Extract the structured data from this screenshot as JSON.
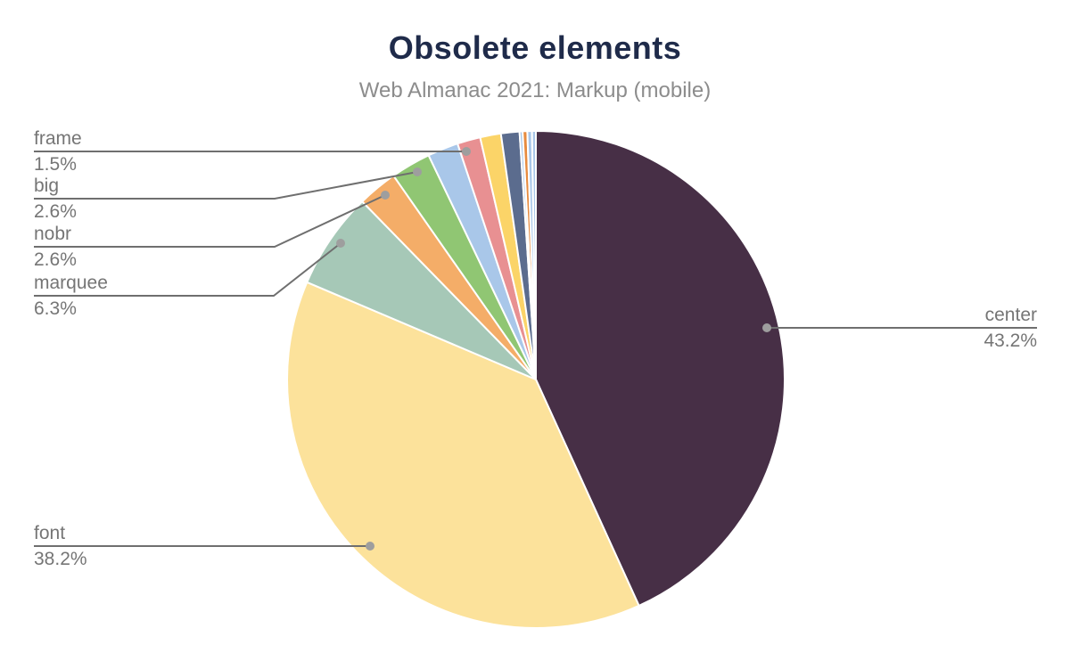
{
  "chart_data": {
    "type": "pie",
    "title": "Obsolete elements",
    "subtitle": "Web Almanac 2021: Markup (mobile)",
    "unit": "%",
    "legend_position": "none",
    "grid": false,
    "slices": [
      {
        "label": "center",
        "value": 43.2,
        "color": "#472F46"
      },
      {
        "label": "font",
        "value": 38.2,
        "color": "#FCE29B"
      },
      {
        "label": "marquee",
        "value": 6.3,
        "color": "#A6C8B7"
      },
      {
        "label": "nobr",
        "value": 2.6,
        "color": "#F4AD68"
      },
      {
        "label": "big",
        "value": 2.6,
        "color": "#90C673"
      },
      {
        "label": "",
        "value": 2.0,
        "color": "#A9C7E9"
      },
      {
        "label": "frame",
        "value": 1.5,
        "color": "#E89092"
      },
      {
        "label": "",
        "value": 1.35,
        "color": "#FBD468"
      },
      {
        "label": "",
        "value": 1.2,
        "color": "#5B6C8E"
      },
      {
        "label": "",
        "value": 0.2,
        "color": "#A9C7E9"
      },
      {
        "label": "",
        "value": 0.3,
        "color": "#E78B3F"
      },
      {
        "label": "",
        "value": 0.3,
        "color": "#A9C7E9"
      },
      {
        "label": "",
        "value": 0.25,
        "color": "#A9C7E9"
      }
    ],
    "callouts": [
      {
        "slice": "frame",
        "label": "frame",
        "value_text": "1.5%"
      },
      {
        "slice": "big",
        "label": "big",
        "value_text": "2.6%"
      },
      {
        "slice": "nobr",
        "label": "nobr",
        "value_text": "2.6%"
      },
      {
        "slice": "marquee",
        "label": "marquee",
        "value_text": "6.3%"
      },
      {
        "slice": "font",
        "label": "font",
        "value_text": "38.2%"
      },
      {
        "slice": "center",
        "label": "center",
        "value_text": "43.2%"
      }
    ]
  },
  "colors": {
    "title": "#1F2B4A",
    "subtitle": "#8C8C8C",
    "label": "#757575",
    "leader_line": "#6F6F6F",
    "leader_dot": "#9E9E9E",
    "background": "#FFFFFF",
    "slice_gap": "#FFFFFF"
  }
}
